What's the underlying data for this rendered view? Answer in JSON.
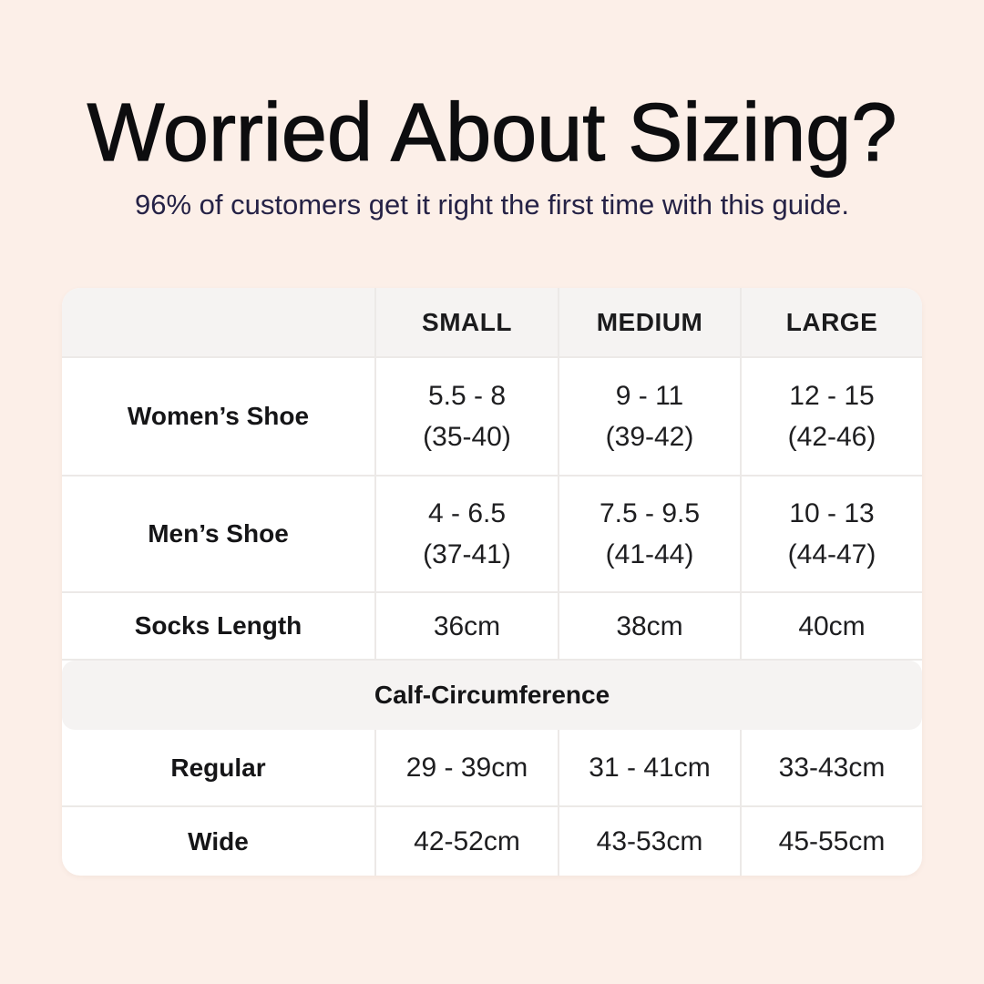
{
  "header": {
    "title": "Worried About Sizing?",
    "subtitle": "96% of customers get it right the first time with this guide."
  },
  "colors": {
    "background": "#fcefe8",
    "card": "#ffffff",
    "band_gray": "#f5f3f2",
    "divider": "#ece9e7",
    "title_text": "#0d0d0f",
    "subtitle_text": "#252246",
    "table_text": "#1e1e20"
  },
  "chart_data": {
    "type": "table",
    "title": "Worried About Sizing?",
    "subtitle": "96% of customers get it right the first time with this guide.",
    "columns": [
      "",
      "SMALL",
      "MEDIUM",
      "LARGE"
    ],
    "rows": [
      [
        "Women’s Shoe",
        "5.5 - 8 (35-40)",
        "9 - 11 (39-42)",
        "12 - 15 (42-46)"
      ],
      [
        "Men’s Shoe",
        "4 - 6.5 (37-41)",
        "7.5 - 9.5 (41-44)",
        "10 - 13 (44-47)"
      ],
      [
        "Socks Length",
        "36cm",
        "38cm",
        "40cm"
      ],
      [
        "Calf-Circumference",
        "",
        "",
        ""
      ],
      [
        "Regular",
        "29 - 39cm",
        "31 - 41cm",
        "33-43cm"
      ],
      [
        "Wide",
        "42-52cm",
        "43-53cm",
        "45-55cm"
      ]
    ],
    "section_header_row_index": 3
  },
  "table": {
    "header": {
      "small": "SMALL",
      "medium": "MEDIUM",
      "large": "LARGE"
    },
    "womens": {
      "label": "Women’s Shoe",
      "small": {
        "line1": "5.5 - 8",
        "line2": "(35-40)"
      },
      "medium": {
        "line1": "9 - 11",
        "line2": "(39-42)"
      },
      "large": {
        "line1": "12 - 15",
        "line2": "(42-46)"
      }
    },
    "mens": {
      "label": "Men’s Shoe",
      "small": {
        "line1": "4 - 6.5",
        "line2": "(37-41)"
      },
      "medium": {
        "line1": "7.5 - 9.5",
        "line2": "(41-44)"
      },
      "large": {
        "line1": "10 - 13",
        "line2": "(44-47)"
      }
    },
    "socks": {
      "label": "Socks Length",
      "small": "36cm",
      "medium": "38cm",
      "large": "40cm"
    },
    "section_header": "Calf-Circumference",
    "regular": {
      "label": "Regular",
      "small": "29 - 39cm",
      "medium": "31 - 41cm",
      "large": "33-43cm"
    },
    "wide": {
      "label": "Wide",
      "small": "42-52cm",
      "medium": "43-53cm",
      "large": "45-55cm"
    }
  }
}
